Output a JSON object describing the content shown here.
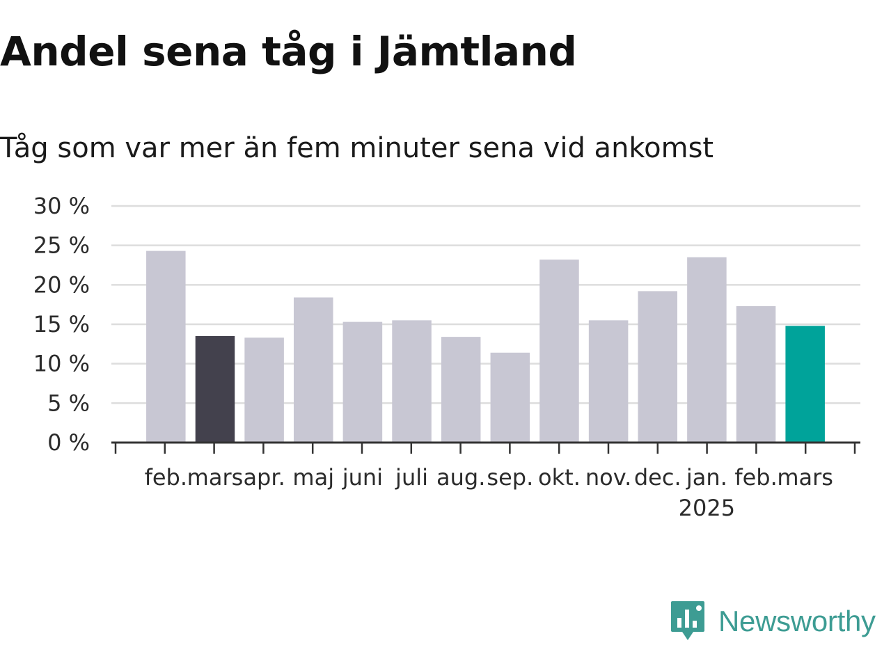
{
  "title": "Andel sena tåg i Jämtland",
  "subtitle": "Tåg som var mer än fem minuter sena vid ankomst",
  "brand": {
    "name": "Newsworthy",
    "icon": "newsworthy-logo-icon",
    "color": "#3d9c93"
  },
  "colors": {
    "default_bar": "#c8c7d3",
    "highlight_prev": "#43414d",
    "highlight_current": "#00a39a",
    "grid": "#dddddd",
    "axis": "#333333"
  },
  "chart_data": {
    "type": "bar",
    "title": "Andel sena tåg i Jämtland",
    "subtitle": "Tåg som var mer än fem minuter sena vid ankomst",
    "xlabel": "",
    "ylabel": "",
    "ylim": [
      0,
      30
    ],
    "yticks": [
      0,
      5,
      10,
      15,
      20,
      25,
      30
    ],
    "ytick_labels": [
      "0 %",
      "5 %",
      "10 %",
      "15 %",
      "20 %",
      "25 %",
      "30 %"
    ],
    "grid": true,
    "categories": [
      "feb.",
      "mars",
      "apr.",
      "maj",
      "juni",
      "juli",
      "aug.",
      "sep.",
      "okt.",
      "nov.",
      "dec.",
      "jan.",
      "feb.",
      "mars"
    ],
    "year_labels": [
      {
        "index": 11,
        "label": "2025"
      }
    ],
    "values": [
      24.3,
      13.5,
      13.3,
      18.4,
      15.3,
      15.5,
      13.4,
      11.4,
      23.2,
      15.5,
      19.2,
      23.5,
      17.3,
      14.8
    ],
    "bar_colors": [
      "#c8c7d3",
      "#43414d",
      "#c8c7d3",
      "#c8c7d3",
      "#c8c7d3",
      "#c8c7d3",
      "#c8c7d3",
      "#c8c7d3",
      "#c8c7d3",
      "#c8c7d3",
      "#c8c7d3",
      "#c8c7d3",
      "#c8c7d3",
      "#00a39a"
    ]
  }
}
